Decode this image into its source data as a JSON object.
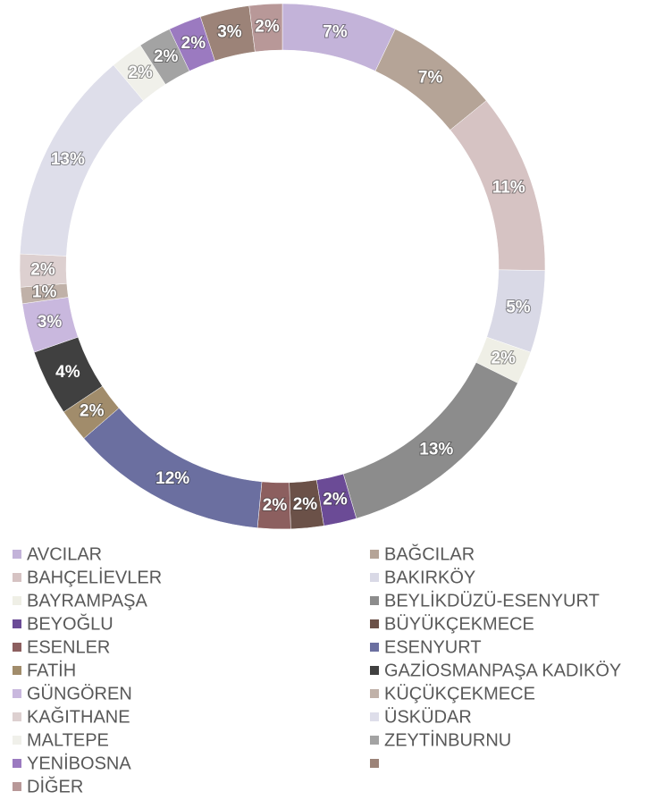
{
  "chart_data": {
    "type": "donut",
    "categories": [
      "AVCILAR",
      "BAĞCILAR",
      "BAHÇELİEVLER",
      "BAKIRKÖY",
      "BAYRAMPAŞA",
      "BEYLİKDÜZÜ-ESENYURT",
      "BEYOĞLU",
      "BÜYÜKÇEKMECE",
      "ESENLER",
      "ESENYURT",
      "FATİH",
      "GAZİOSMANPAŞA KADIKÖY",
      "GÜNGÖREN",
      "KÜÇÜKÇEKMECE",
      "KAĞITHANE",
      "ÜSKÜDAR",
      "MALTEPE",
      "ZEYTİNBURNU",
      "YENİBOSNA",
      null,
      "DİĞER"
    ],
    "values": [
      7,
      7,
      11,
      5,
      2,
      13,
      2,
      2,
      2,
      12,
      2,
      4,
      3,
      1,
      2,
      13,
      2,
      2,
      2,
      3,
      2
    ],
    "value_labels": [
      "7%",
      "7%",
      "11%",
      "5%",
      "2%",
      "13%",
      "2%",
      "2%",
      "2%",
      "12%",
      "2%",
      "4%",
      "3%",
      "1%",
      "2%",
      "13%",
      "2%",
      "2%",
      "2%",
      "3%",
      "2%"
    ],
    "colors": [
      "#c3b3d9",
      "#b5a497",
      "#d6c3c3",
      "#d9d9e6",
      "#efefe6",
      "#8c8c8c",
      "#6b4b96",
      "#6b5148",
      "#8c5f5f",
      "#6b6fa0",
      "#a18c6b",
      "#404040",
      "#c9b8de",
      "#c0b1a8",
      "#ddd0d0",
      "#dedeea",
      "#f0f0ea",
      "#a3a3a3",
      "#9b7ac0",
      "#9c8378",
      "#b89898"
    ],
    "legend": "bottom"
  }
}
